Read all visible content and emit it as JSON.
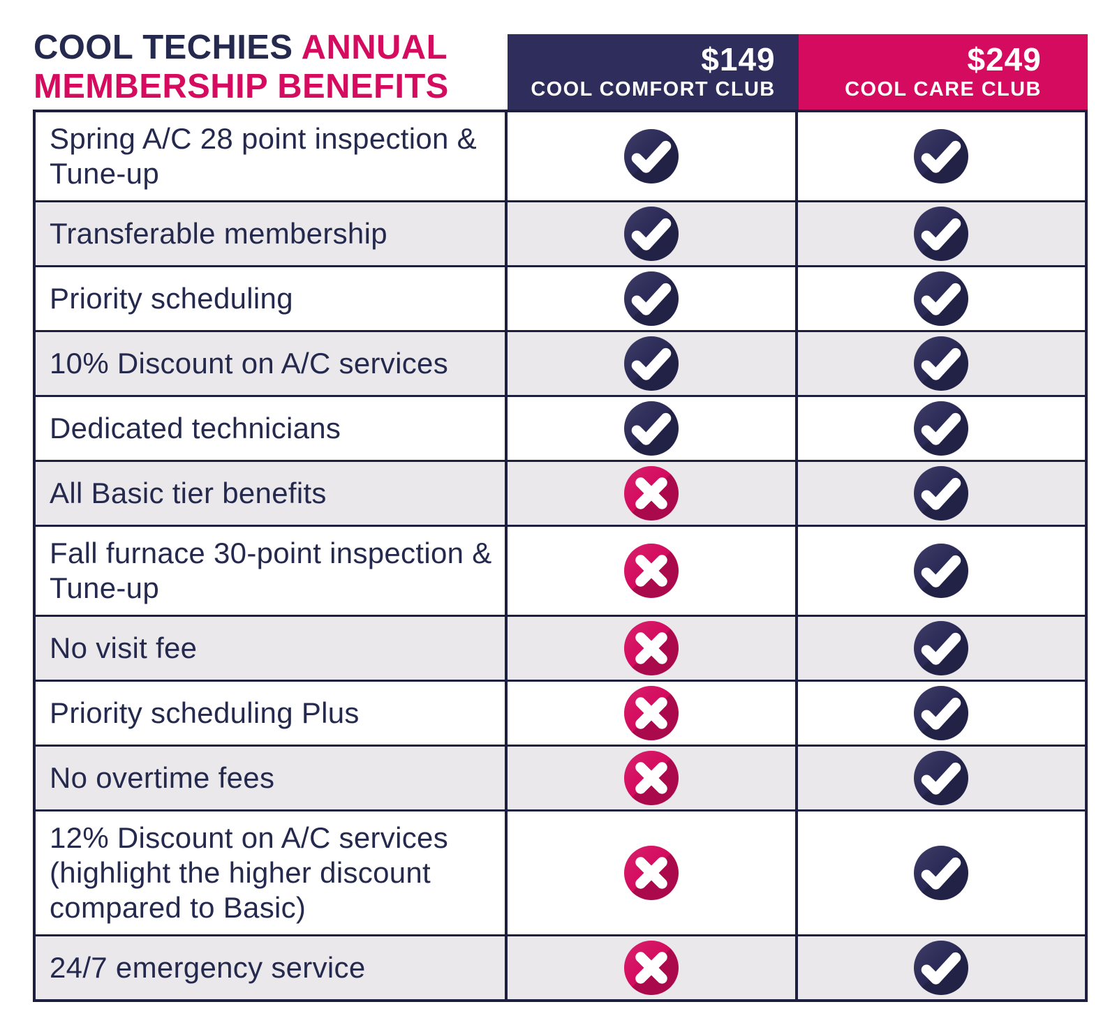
{
  "title": {
    "line1_navy": "COOL TECHIES",
    "line1_pink": "ANNUAL",
    "line2_pink": "MEMBERSHIP BENEFITS"
  },
  "chart_data": {
    "type": "table",
    "title": "COOL TECHIES ANNUAL MEMBERSHIP BENEFITS",
    "categories": [
      "Spring A/C 28 point inspection & Tune-up",
      "Transferable membership",
      "Priority scheduling",
      "10% Discount on A/C services",
      "Dedicated technicians",
      "All Basic tier benefits",
      "Fall furnace 30-point inspection & Tune-up",
      "No visit fee",
      "Priority scheduling Plus",
      "No overtime fees",
      "12% Discount on A/C services (highlight the higher discount compared to Basic)",
      "24/7 emergency service"
    ],
    "series": [
      {
        "name": "COOL COMFORT CLUB",
        "price": "$149",
        "values": [
          true,
          true,
          true,
          true,
          true,
          false,
          false,
          false,
          false,
          false,
          false,
          false
        ]
      },
      {
        "name": "COOL CARE CLUB",
        "price": "$249",
        "values": [
          true,
          true,
          true,
          true,
          true,
          true,
          true,
          true,
          true,
          true,
          true,
          true
        ]
      }
    ],
    "legend_position": "top",
    "grid": true
  },
  "icons": {
    "granted": "check-icon",
    "denied": "cross-icon"
  },
  "colors": {
    "navy": "#2e2d5c",
    "navy_icon": "#2b2a57",
    "navy_text": "#24294d",
    "pink": "#d40b5e",
    "border": "#1e1e3f",
    "row_alt": "#eae8eb",
    "background": "#ffffff"
  }
}
